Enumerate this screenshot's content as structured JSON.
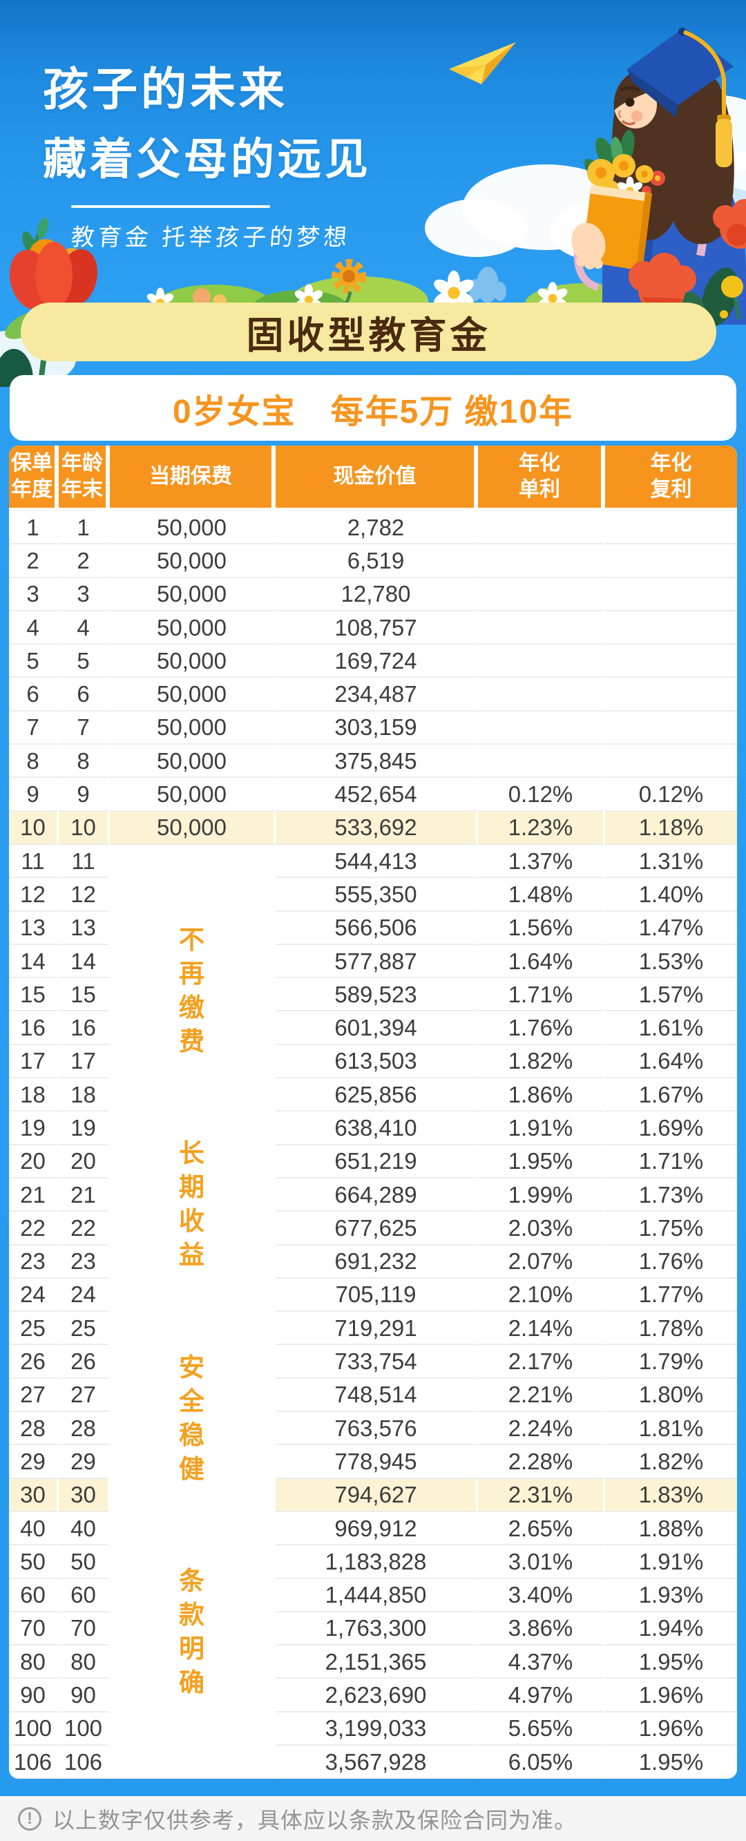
{
  "hero": {
    "title_line1": "孩子的未来",
    "title_line2": "藏着父母的远见",
    "subtitle": "教育金 托举孩子的梦想"
  },
  "banner": {
    "label": "固收型教育金"
  },
  "plan": {
    "summary": "0岁女宝　每年5万 缴10年"
  },
  "table": {
    "columns": [
      {
        "line1": "保单",
        "line2": "年度"
      },
      {
        "line1": "年龄",
        "line2": "年末"
      },
      {
        "line1": "当期保费",
        "line2": ""
      },
      {
        "line1": "现金价值",
        "line2": ""
      },
      {
        "line1": "年化",
        "line2": "单利"
      },
      {
        "line1": "年化",
        "line2": "复利"
      }
    ],
    "note": {
      "start_row_index": 10,
      "phrases": [
        "不再缴费",
        "长期收益",
        "安全稳健",
        "条款明确"
      ]
    },
    "rows": [
      {
        "year": "1",
        "age": "1",
        "premium": "50,000",
        "cash_value": "2,782",
        "simple": "",
        "compound": "",
        "hl": false
      },
      {
        "year": "2",
        "age": "2",
        "premium": "50,000",
        "cash_value": "6,519",
        "simple": "",
        "compound": "",
        "hl": false
      },
      {
        "year": "3",
        "age": "3",
        "premium": "50,000",
        "cash_value": "12,780",
        "simple": "",
        "compound": "",
        "hl": false
      },
      {
        "year": "4",
        "age": "4",
        "premium": "50,000",
        "cash_value": "108,757",
        "simple": "",
        "compound": "",
        "hl": false
      },
      {
        "year": "5",
        "age": "5",
        "premium": "50,000",
        "cash_value": "169,724",
        "simple": "",
        "compound": "",
        "hl": false
      },
      {
        "year": "6",
        "age": "6",
        "premium": "50,000",
        "cash_value": "234,487",
        "simple": "",
        "compound": "",
        "hl": false
      },
      {
        "year": "7",
        "age": "7",
        "premium": "50,000",
        "cash_value": "303,159",
        "simple": "",
        "compound": "",
        "hl": false
      },
      {
        "year": "8",
        "age": "8",
        "premium": "50,000",
        "cash_value": "375,845",
        "simple": "",
        "compound": "",
        "hl": false
      },
      {
        "year": "9",
        "age": "9",
        "premium": "50,000",
        "cash_value": "452,654",
        "simple": "0.12%",
        "compound": "0.12%",
        "hl": false
      },
      {
        "year": "10",
        "age": "10",
        "premium": "50,000",
        "cash_value": "533,692",
        "simple": "1.23%",
        "compound": "1.18%",
        "hl": true
      },
      {
        "year": "11",
        "age": "11",
        "premium": "",
        "cash_value": "544,413",
        "simple": "1.37%",
        "compound": "1.31%",
        "hl": false
      },
      {
        "year": "12",
        "age": "12",
        "premium": "",
        "cash_value": "555,350",
        "simple": "1.48%",
        "compound": "1.40%",
        "hl": false
      },
      {
        "year": "13",
        "age": "13",
        "premium": "",
        "cash_value": "566,506",
        "simple": "1.56%",
        "compound": "1.47%",
        "hl": false
      },
      {
        "year": "14",
        "age": "14",
        "premium": "",
        "cash_value": "577,887",
        "simple": "1.64%",
        "compound": "1.53%",
        "hl": false
      },
      {
        "year": "15",
        "age": "15",
        "premium": "",
        "cash_value": "589,523",
        "simple": "1.71%",
        "compound": "1.57%",
        "hl": false
      },
      {
        "year": "16",
        "age": "16",
        "premium": "",
        "cash_value": "601,394",
        "simple": "1.76%",
        "compound": "1.61%",
        "hl": false
      },
      {
        "year": "17",
        "age": "17",
        "premium": "",
        "cash_value": "613,503",
        "simple": "1.82%",
        "compound": "1.64%",
        "hl": false
      },
      {
        "year": "18",
        "age": "18",
        "premium": "",
        "cash_value": "625,856",
        "simple": "1.86%",
        "compound": "1.67%",
        "hl": false
      },
      {
        "year": "19",
        "age": "19",
        "premium": "",
        "cash_value": "638,410",
        "simple": "1.91%",
        "compound": "1.69%",
        "hl": false
      },
      {
        "year": "20",
        "age": "20",
        "premium": "",
        "cash_value": "651,219",
        "simple": "1.95%",
        "compound": "1.71%",
        "hl": false
      },
      {
        "year": "21",
        "age": "21",
        "premium": "",
        "cash_value": "664,289",
        "simple": "1.99%",
        "compound": "1.73%",
        "hl": false
      },
      {
        "year": "22",
        "age": "22",
        "premium": "",
        "cash_value": "677,625",
        "simple": "2.03%",
        "compound": "1.75%",
        "hl": false
      },
      {
        "year": "23",
        "age": "23",
        "premium": "",
        "cash_value": "691,232",
        "simple": "2.07%",
        "compound": "1.76%",
        "hl": false
      },
      {
        "year": "24",
        "age": "24",
        "premium": "",
        "cash_value": "705,119",
        "simple": "2.10%",
        "compound": "1.77%",
        "hl": false
      },
      {
        "year": "25",
        "age": "25",
        "premium": "",
        "cash_value": "719,291",
        "simple": "2.14%",
        "compound": "1.78%",
        "hl": false
      },
      {
        "year": "26",
        "age": "26",
        "premium": "",
        "cash_value": "733,754",
        "simple": "2.17%",
        "compound": "1.79%",
        "hl": false
      },
      {
        "year": "27",
        "age": "27",
        "premium": "",
        "cash_value": "748,514",
        "simple": "2.21%",
        "compound": "1.80%",
        "hl": false
      },
      {
        "year": "28",
        "age": "28",
        "premium": "",
        "cash_value": "763,576",
        "simple": "2.24%",
        "compound": "1.81%",
        "hl": false
      },
      {
        "year": "29",
        "age": "29",
        "premium": "",
        "cash_value": "778,945",
        "simple": "2.28%",
        "compound": "1.82%",
        "hl": false
      },
      {
        "year": "30",
        "age": "30",
        "premium": "",
        "cash_value": "794,627",
        "simple": "2.31%",
        "compound": "1.83%",
        "hl": true
      },
      {
        "year": "40",
        "age": "40",
        "premium": "",
        "cash_value": "969,912",
        "simple": "2.65%",
        "compound": "1.88%",
        "hl": false
      },
      {
        "year": "50",
        "age": "50",
        "premium": "",
        "cash_value": "1,183,828",
        "simple": "3.01%",
        "compound": "1.91%",
        "hl": false
      },
      {
        "year": "60",
        "age": "60",
        "premium": "",
        "cash_value": "1,444,850",
        "simple": "3.40%",
        "compound": "1.93%",
        "hl": false
      },
      {
        "year": "70",
        "age": "70",
        "premium": "",
        "cash_value": "1,763,300",
        "simple": "3.86%",
        "compound": "1.94%",
        "hl": false
      },
      {
        "year": "80",
        "age": "80",
        "premium": "",
        "cash_value": "2,151,365",
        "simple": "4.37%",
        "compound": "1.95%",
        "hl": false
      },
      {
        "year": "90",
        "age": "90",
        "premium": "",
        "cash_value": "2,623,690",
        "simple": "4.97%",
        "compound": "1.96%",
        "hl": false
      },
      {
        "year": "100",
        "age": "100",
        "premium": "",
        "cash_value": "3,199,033",
        "simple": "5.65%",
        "compound": "1.96%",
        "hl": false
      },
      {
        "year": "106",
        "age": "106",
        "premium": "",
        "cash_value": "3,567,928",
        "simple": "6.05%",
        "compound": "1.95%",
        "hl": false
      }
    ]
  },
  "footer": {
    "icon": "!",
    "disclaimer": "以上数字仅供参考，具体应以条款及保险合同为准。"
  },
  "colors": {
    "sky_blue": "#2A9DEF",
    "header_orange": "#F7941E",
    "accent_orange": "#F7941E",
    "note_orange": "#F5A01E",
    "banner_yellow": "#F7E9A0",
    "banner_text_brown": "#4A2B10",
    "highlight_row": "#FBF3D4",
    "footer_gray": "#949494"
  }
}
